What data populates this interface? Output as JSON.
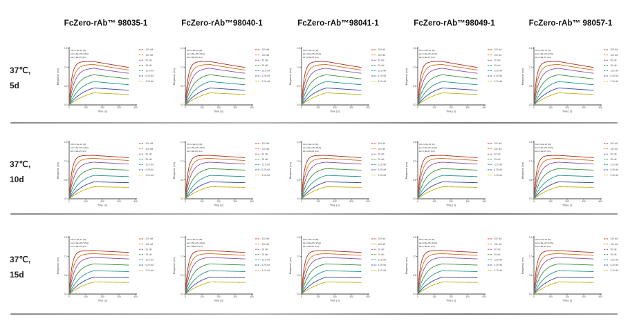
{
  "page": {
    "background": "#ffffff"
  },
  "header": {
    "columns": [
      "FcZero-rAb™ 98035-1",
      "FcZero-rAb™98040-1",
      "FcZero-rAb™98041-1",
      "FcZero-rAb™98049-1",
      "FcZero-rAb™ 98057-1"
    ]
  },
  "rows": [
    {
      "label_line1": "37℃,",
      "label_line2": "5d"
    },
    {
      "label_line1": "37℃,",
      "label_line2": "10d"
    },
    {
      "label_line1": "37℃,",
      "label_line2": "15d"
    }
  ],
  "chart_data": {
    "type": "line",
    "title": "",
    "xlabel": "Time ( s)",
    "ylabel": "Response (nm)",
    "xlim": [
      0,
      400
    ],
    "xticks": [
      0,
      100,
      200,
      300,
      400
    ],
    "ylim": [
      0,
      1.5
    ],
    "yticks": [
      "0.0",
      "0.5",
      "1.0",
      "1.5"
    ],
    "grid": false,
    "legend_position": "top-right",
    "association_end_s": 150,
    "trace_end_s": 360,
    "annotation_lines": [
      "KD=1.2E-10 (M)",
      "ka=1.6E+05 (1/Ms)",
      "kd=1.9E-05 (1/s)"
    ],
    "series": [
      {
        "name": "200 nM",
        "color": "#c0392b",
        "level_nm": 1.15,
        "k_on": 0.06
      },
      {
        "name": "100 nM",
        "color": "#e67e22",
        "level_nm": 1.07,
        "k_on": 0.042
      },
      {
        "name": "50 nM",
        "color": "#9b59b6",
        "level_nm": 0.97,
        "k_on": 0.03
      },
      {
        "name": "25 nM",
        "color": "#43a047",
        "level_nm": 0.8,
        "k_on": 0.021
      },
      {
        "name": "12.5 nM",
        "color": "#26a69a",
        "level_nm": 0.62,
        "k_on": 0.014
      },
      {
        "name": "6.25 nM",
        "color": "#3f51b5",
        "level_nm": 0.45,
        "k_on": 0.01
      },
      {
        "name": "3.13 nM",
        "color": "#d4c41a",
        "level_nm": 0.32,
        "k_on": 0.0075
      }
    ],
    "panel_conditions": [
      {
        "condition": "37℃, 5d",
        "dissociation_decay": 0.0007
      },
      {
        "condition": "37℃, 10d",
        "dissociation_decay": 0.00025
      },
      {
        "condition": "37℃, 15d",
        "dissociation_decay": 0.0002
      }
    ],
    "panel_columns": [
      "98035-1",
      "98040-1",
      "98041-1",
      "98049-1",
      "98057-1"
    ]
  },
  "layout": {
    "row_tops": [
      58,
      194,
      332
    ],
    "divider_tops": [
      177,
      309,
      454
    ]
  }
}
